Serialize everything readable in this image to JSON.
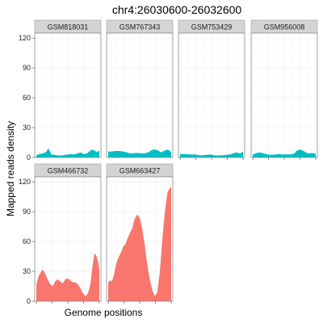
{
  "chart_data": {
    "type": "area",
    "title": "chr4:26030600-26032600",
    "xlabel": "Genome positions",
    "ylabel": "Mapped reads density",
    "ylim": [
      0,
      125
    ],
    "yticks": [
      0,
      30,
      60,
      90,
      120
    ],
    "grid": true,
    "layout": "facet_wrap 2 rows x 4 columns, free x scale, shared y scale, no legend",
    "group_colors": {
      "teal": "#00BFC4",
      "salmon": "#F8766D"
    },
    "panels": [
      {
        "name": "GSM818031",
        "color": "teal",
        "x": [
          0,
          0.03,
          0.06,
          0.09,
          0.12,
          0.16,
          0.19,
          0.21,
          0.24,
          0.3,
          0.35,
          0.4,
          0.45,
          0.5,
          0.55,
          0.6,
          0.65,
          0.7,
          0.75,
          0.8,
          0.84,
          0.88,
          0.92,
          0.96,
          1.0
        ],
        "y": [
          2,
          3,
          3.5,
          4,
          4.5,
          6,
          9,
          7,
          3,
          2.5,
          2,
          2,
          2.5,
          3,
          3.5,
          3,
          4,
          5,
          3.5,
          4,
          6,
          8,
          7,
          5.5,
          7
        ]
      },
      {
        "name": "GSM767343",
        "color": "teal",
        "x": [
          0,
          0.06,
          0.12,
          0.18,
          0.24,
          0.3,
          0.36,
          0.42,
          0.48,
          0.54,
          0.6,
          0.64,
          0.68,
          0.72,
          0.78,
          0.84,
          0.9,
          0.95,
          1.0
        ],
        "y": [
          6,
          6,
          6.5,
          6.5,
          6,
          5,
          4,
          4.5,
          4.5,
          4,
          4.5,
          5.5,
          7,
          8,
          7.5,
          5,
          7,
          8,
          5.5
        ]
      },
      {
        "name": "GSM753429",
        "color": "teal",
        "x": [
          0,
          0.08,
          0.16,
          0.24,
          0.32,
          0.4,
          0.48,
          0.56,
          0.64,
          0.72,
          0.8,
          0.86,
          0.9,
          0.95,
          1.0
        ],
        "y": [
          3.5,
          3.5,
          3,
          3,
          2,
          2.5,
          3,
          2,
          2,
          2.5,
          3,
          4.5,
          5,
          4,
          6
        ]
      },
      {
        "name": "GSM956008",
        "color": "teal",
        "x": [
          0,
          0.06,
          0.12,
          0.18,
          0.24,
          0.3,
          0.36,
          0.42,
          0.48,
          0.54,
          0.6,
          0.66,
          0.7,
          0.76,
          0.82,
          0.88,
          0.94,
          1.0
        ],
        "y": [
          3,
          4.5,
          5,
          4,
          3,
          2.5,
          3,
          3.5,
          3,
          3,
          3,
          4,
          7,
          8,
          6,
          4,
          4.5,
          4
        ]
      },
      {
        "name": "GSM466732",
        "color": "salmon",
        "x": [
          0,
          0.03,
          0.06,
          0.1,
          0.14,
          0.18,
          0.22,
          0.26,
          0.3,
          0.34,
          0.38,
          0.42,
          0.46,
          0.5,
          0.54,
          0.58,
          0.62,
          0.66,
          0.7,
          0.74,
          0.78,
          0.82,
          0.86,
          0.89,
          0.92,
          0.95,
          0.98,
          1.0
        ],
        "y": [
          16,
          24,
          28,
          32,
          28,
          22,
          17,
          15,
          20,
          22,
          20,
          18,
          22,
          23,
          21,
          19,
          19,
          17,
          13,
          8,
          5,
          8,
          18,
          34,
          48,
          46,
          40,
          32
        ]
      },
      {
        "name": "GSM663427",
        "color": "salmon",
        "x": [
          0,
          0.03,
          0.06,
          0.09,
          0.12,
          0.15,
          0.18,
          0.21,
          0.24,
          0.27,
          0.3,
          0.34,
          0.38,
          0.42,
          0.46,
          0.5,
          0.54,
          0.58,
          0.62,
          0.66,
          0.7,
          0.74,
          0.78,
          0.82,
          0.86,
          0.9,
          0.94,
          0.97,
          1.0
        ],
        "y": [
          19,
          21,
          20,
          26,
          36,
          42,
          46,
          50,
          55,
          57,
          62,
          68,
          73,
          83,
          87,
          84,
          73,
          57,
          36,
          22,
          11,
          5,
          9,
          30,
          63,
          90,
          109,
          113,
          115
        ]
      }
    ]
  }
}
